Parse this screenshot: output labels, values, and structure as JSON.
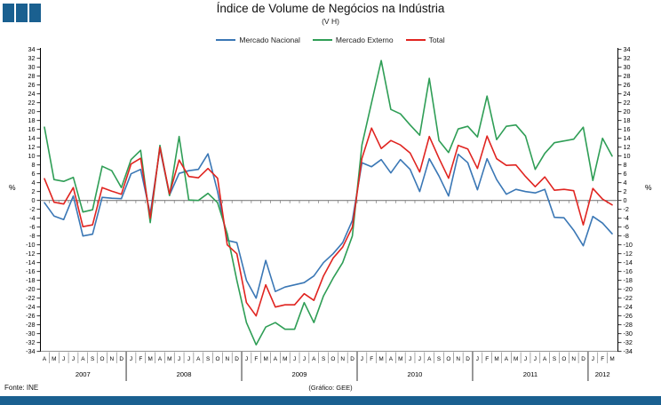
{
  "branding": {
    "logo_color": "#1a6090",
    "footer_bar_color": "#1a6090"
  },
  "header": {
    "title": "Índice de Volume de Negócios na Indústria",
    "subtitle": "(V H)"
  },
  "footer": {
    "source": "Fonte:  INE",
    "credit": "(Gráfico:  GEE)"
  },
  "chart_data": {
    "type": "line",
    "title": "Índice de Volume de Negócios na Indústria",
    "subtitle": "(V H)",
    "ylabel_left": "%",
    "ylabel_right": "%",
    "ylim": [
      -34,
      34
    ],
    "ytick_step": 2,
    "grid": false,
    "zero_line": true,
    "legend_position": "top",
    "axis_color": "#000000",
    "zero_line_color": "#808080",
    "years": [
      {
        "label": "2007",
        "months": 9
      },
      {
        "label": "2008",
        "months": 12
      },
      {
        "label": "2009",
        "months": 12
      },
      {
        "label": "2010",
        "months": 12
      },
      {
        "label": "2011",
        "months": 12
      },
      {
        "label": "2012",
        "months": 3
      }
    ],
    "month_letters": [
      "A",
      "M",
      "J",
      "J",
      "A",
      "S",
      "O",
      "N",
      "D",
      "J",
      "F",
      "M",
      "A",
      "M",
      "J",
      "J",
      "A",
      "S",
      "O",
      "N",
      "D",
      "J",
      "F",
      "M",
      "A",
      "M",
      "J",
      "J",
      "A",
      "S",
      "O",
      "N",
      "D",
      "J",
      "F",
      "M",
      "A",
      "M",
      "J",
      "J",
      "A",
      "S",
      "O",
      "N",
      "D",
      "J",
      "F",
      "M",
      "A",
      "M",
      "J",
      "J",
      "A",
      "S",
      "O",
      "N",
      "D",
      "J",
      "F",
      "M"
    ],
    "series": [
      {
        "name": "Mercado Nacional",
        "color": "#3a77b5",
        "values": [
          -0.5,
          -3.5,
          -4.3,
          1.0,
          -8.0,
          -7.6,
          0.7,
          0.5,
          0.4,
          6.0,
          7.0,
          -3.0,
          11.7,
          1.2,
          6.1,
          6.7,
          7.0,
          10.5,
          2.0,
          -9.0,
          -9.5,
          -18.0,
          -22.0,
          -13.5,
          -20.5,
          -19.5,
          -19.0,
          -18.5,
          -17.0,
          -14.0,
          -12.0,
          -9.5,
          -4.5,
          8.5,
          7.6,
          9.2,
          6.2,
          9.2,
          7.0,
          2.0,
          9.4,
          5.5,
          1.0,
          10.4,
          8.5,
          2.4,
          9.4,
          4.7,
          1.4,
          2.5,
          2.0,
          1.7,
          2.5,
          -3.8,
          -3.9,
          -6.7,
          -10.2,
          -3.6,
          -5.1,
          -7.5
        ]
      },
      {
        "name": "Mercado Externo",
        "color": "#2f9e56",
        "values": [
          16.5,
          4.7,
          4.3,
          5.2,
          -2.6,
          -2.1,
          7.7,
          6.7,
          2.9,
          9.2,
          11.3,
          -5.0,
          12.4,
          1.1,
          14.4,
          0.1,
          0.0,
          1.6,
          -0.5,
          -7.5,
          -18.0,
          -27.5,
          -32.5,
          -28.5,
          -27.5,
          -29.0,
          -29.0,
          -23.0,
          -27.5,
          -21.5,
          -17.5,
          -14.0,
          -8.0,
          12.5,
          22.0,
          31.5,
          20.5,
          19.5,
          17.0,
          14.7,
          27.5,
          13.5,
          10.8,
          16.1,
          16.7,
          14.3,
          23.5,
          13.7,
          16.7,
          17.0,
          14.5,
          7.0,
          10.6,
          13.0,
          13.4,
          13.8,
          16.5,
          4.5,
          14.0,
          10.0
        ]
      },
      {
        "name": "Total",
        "color": "#e02420",
        "values": [
          4.9,
          -0.4,
          -0.8,
          2.9,
          -5.9,
          -5.5,
          2.9,
          2.1,
          1.4,
          8.2,
          9.5,
          -4.0,
          12.0,
          1.5,
          9.1,
          5.4,
          5.1,
          7.2,
          5.0,
          -10.0,
          -12.0,
          -23.0,
          -26.0,
          -19.0,
          -24.0,
          -23.5,
          -23.5,
          -21.0,
          -22.5,
          -17.0,
          -13.0,
          -10.5,
          -6.0,
          9.5,
          16.3,
          11.7,
          13.5,
          12.5,
          10.7,
          6.4,
          14.4,
          9.5,
          5.0,
          12.4,
          11.6,
          7.2,
          14.5,
          9.4,
          7.9,
          8.0,
          5.4,
          3.1,
          5.3,
          2.3,
          2.5,
          2.2,
          -5.5,
          2.7,
          0.3,
          -1.0
        ]
      }
    ]
  }
}
